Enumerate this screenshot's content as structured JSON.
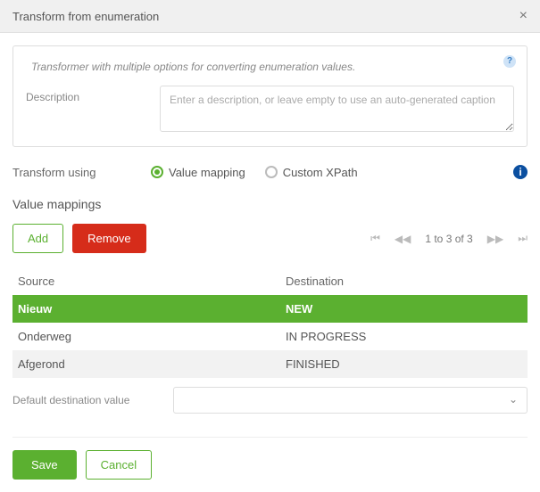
{
  "colors": {
    "primary": "#5bb030",
    "danger": "#d62c1a",
    "info": "#0b4fa0",
    "help_bg": "#cfe3f7",
    "help_fg": "#3a7fc4",
    "border": "#dddddd",
    "row_alt": "#f2f2f2",
    "text": "#555555",
    "muted": "#888888"
  },
  "dialog": {
    "title": "Transform from enumeration",
    "hint": "Transformer with multiple options for converting enumeration values.",
    "description_label": "Description",
    "description_placeholder": "Enter a description, or leave empty to use an auto-generated caption",
    "description_value": ""
  },
  "transform": {
    "label": "Transform using",
    "options": {
      "value_mapping": "Value mapping",
      "custom_xpath": "Custom XPath"
    },
    "selected": "value_mapping"
  },
  "mappings": {
    "section_title": "Value mappings",
    "add_label": "Add",
    "remove_label": "Remove",
    "pager_text": "1 to 3 of 3",
    "columns": {
      "source": "Source",
      "destination": "Destination"
    },
    "rows": [
      {
        "source": "Nieuw",
        "destination": "NEW",
        "selected": true
      },
      {
        "source": "Onderweg",
        "destination": "IN PROGRESS",
        "selected": false
      },
      {
        "source": "Afgerond",
        "destination": "FINISHED",
        "selected": false
      }
    ],
    "default_label": "Default destination value",
    "default_value": ""
  },
  "footer": {
    "save": "Save",
    "cancel": "Cancel"
  }
}
